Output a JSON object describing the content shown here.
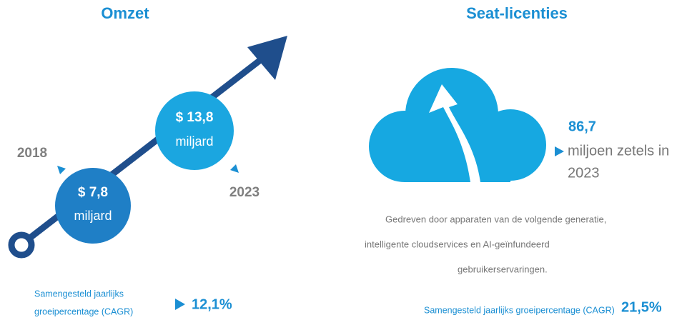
{
  "left": {
    "title": "Omzet",
    "start_year": "2018",
    "end_year": "2023",
    "start_amount": "$ 7,8",
    "start_unit": "miljard",
    "end_amount": "$ 13,8",
    "end_unit": "miljard",
    "cagr_label": [
      "Samengesteld jaarlijks",
      "groeipercentage (CAGR)"
    ],
    "cagr_value": "12,1%"
  },
  "right": {
    "title": "Seat-licenties",
    "stat_value": "86,7",
    "stat_text": [
      "miljoen zetels in",
      "2023"
    ],
    "description": [
      "Gedreven door apparaten van de volgende generatie,",
      "intelligente cloudservices en AI-geïnfundeerd",
      "gebruikerservaringen."
    ],
    "cagr_label": "Samengesteld jaarlijks groeipercentage (CAGR)",
    "cagr_value": "21,5%"
  }
}
